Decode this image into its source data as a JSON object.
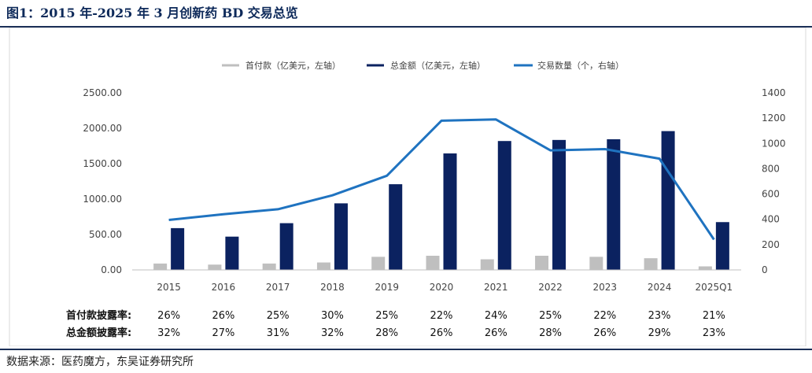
{
  "title": "图1：2015 年-2025 年 3 月创新药 BD 交易总览",
  "source": "数据来源：医药魔方，东吴证券研究所",
  "rows": {
    "upfront_label": "首付款披露率:",
    "total_label": "总金额披露率:",
    "upfront_rates": [
      "26%",
      "26%",
      "25%",
      "30%",
      "25%",
      "22%",
      "24%",
      "25%",
      "22%",
      "23%",
      "21%"
    ],
    "total_rates": [
      "32%",
      "27%",
      "31%",
      "32%",
      "28%",
      "26%",
      "26%",
      "28%",
      "26%",
      "29%",
      "23%"
    ]
  },
  "colors": {
    "upfront": "#bfbfbf",
    "total": "#0b2260",
    "count": "#1f73c0",
    "title": "#0e2a5a",
    "rule": "#1b2f57"
  },
  "chart_data": {
    "type": "bar+line",
    "categories": [
      "2015",
      "2016",
      "2017",
      "2018",
      "2019",
      "2020",
      "2021",
      "2022",
      "2023",
      "2024",
      "2025Q1"
    ],
    "series": [
      {
        "name": "首付款（亿美元，左轴）",
        "type": "bar",
        "axis": "left",
        "values": [
          90,
          75,
          90,
          105,
          185,
          200,
          150,
          200,
          185,
          165,
          50
        ]
      },
      {
        "name": "总金额（亿美元，左轴）",
        "type": "bar",
        "axis": "left",
        "values": [
          590,
          470,
          660,
          940,
          1210,
          1645,
          1820,
          1835,
          1845,
          1960,
          675
        ]
      },
      {
        "name": "交易数量（个，右轴）",
        "type": "line",
        "axis": "right",
        "values": [
          395,
          440,
          480,
          590,
          745,
          1180,
          1190,
          945,
          955,
          880,
          240
        ]
      }
    ],
    "left_axis": {
      "min": 0,
      "max": 2500,
      "ticks": [
        "0.00",
        "500.00",
        "1000.00",
        "1500.00",
        "2000.00",
        "2500.00"
      ]
    },
    "right_axis": {
      "min": 0,
      "max": 1400,
      "ticks": [
        "0",
        "200",
        "400",
        "600",
        "800",
        "1000",
        "1200",
        "1400"
      ]
    },
    "legend_position": "top-center",
    "grid": false
  }
}
